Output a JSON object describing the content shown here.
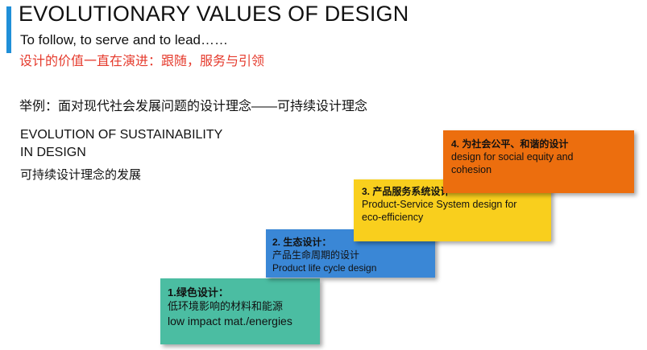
{
  "header": {
    "title": "EVOLUTIONARY VALUES OF DESIGN",
    "subtitle": "To follow, to serve and to lead……",
    "subtitle_cn": "设计的价值一直在演进：跟随，服务与引领"
  },
  "example": "举例：面对现代社会发展问题的设计理念——可持续设计理念",
  "evolution": {
    "title_line1": "EVOLUTION OF SUSTAINABILITY",
    "title_line2": "IN DESIGN",
    "title_cn": "可持续设计理念的发展"
  },
  "steps": [
    {
      "heading": "1.绿色设计：",
      "lines": [
        "低环境影响的材料和能源",
        "low impact mat./energies"
      ],
      "color": "#4bbda2"
    },
    {
      "heading": "2. 生态设计：",
      "lines": [
        "产品生命周期的设计",
        "Product life cycle design"
      ],
      "color": "#3a87d6"
    },
    {
      "heading": "3. 产品服务系统设计",
      "lines": [
        "Product-Service System design for",
        "eco-efficiency"
      ],
      "color": "#f9cf1d"
    },
    {
      "heading": "4. 为社会公平、和谐的设计",
      "lines": [
        "design for social equity and",
        "cohesion"
      ],
      "color": "#ec6e0e"
    }
  ],
  "colors": {
    "accent_bar": "#1f8fd8",
    "subtitle_cn": "#e53a2c"
  }
}
